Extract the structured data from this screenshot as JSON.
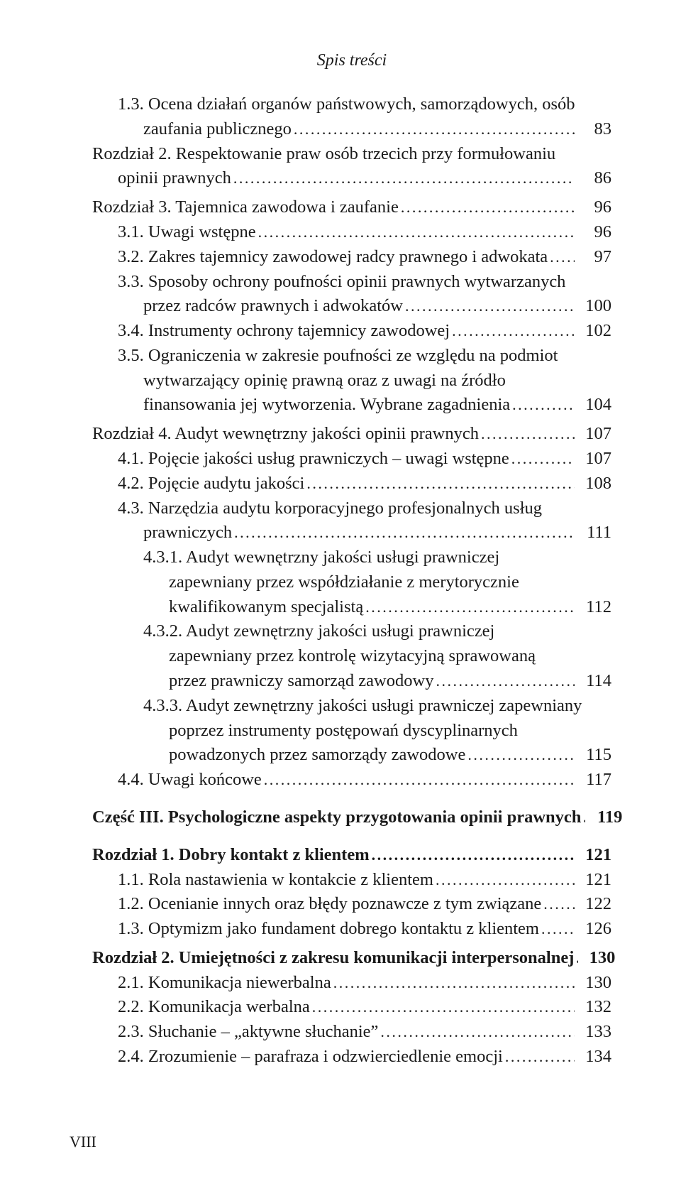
{
  "header": "Spis treści",
  "pageNumber": "VIII",
  "dots": ".........................................................................................................................................................................................",
  "lines": [
    {
      "t": "1.3. Ocena działań organów państwowych, samorządowych, osób",
      "p": "",
      "cls": "indent-1",
      "leader": false
    },
    {
      "t": "zaufania publicznego",
      "p": "83",
      "cls": "indent-2",
      "leader": true
    },
    {
      "t": "Rozdział 2. Respektowanie praw osób trzecich przy formułowaniu",
      "p": "",
      "cls": "",
      "leader": false
    },
    {
      "t": "opinii prawnych",
      "p": "86",
      "cls": "indent-1",
      "leader": true
    },
    {
      "t": "Rozdział 3. Tajemnica zawodowa i zaufanie",
      "p": "96",
      "cls": "gap-top-sm",
      "leader": true
    },
    {
      "t": "3.1. Uwagi wstępne",
      "p": "96",
      "cls": "indent-1",
      "leader": true
    },
    {
      "t": "3.2. Zakres tajemnicy zawodowej radcy prawnego i adwokata",
      "p": "97",
      "cls": "indent-1",
      "leader": true
    },
    {
      "t": "3.3. Sposoby ochrony poufności opinii prawnych wytwarzanych",
      "p": "",
      "cls": "indent-1",
      "leader": false
    },
    {
      "t": "przez radców prawnych i adwokatów",
      "p": "100",
      "cls": "indent-2",
      "leader": true
    },
    {
      "t": "3.4. Instrumenty ochrony tajemnicy zawodowej",
      "p": "102",
      "cls": "indent-1",
      "leader": true
    },
    {
      "t": "3.5. Ograniczenia w zakresie poufności ze względu na podmiot",
      "p": "",
      "cls": "indent-1",
      "leader": false
    },
    {
      "t": "wytwarzający opinię prawną oraz z uwagi na źródło",
      "p": "",
      "cls": "indent-2",
      "leader": false
    },
    {
      "t": "finansowania jej wytworzenia. Wybrane zagadnienia",
      "p": "104",
      "cls": "indent-2",
      "leader": true
    },
    {
      "t": "Rozdział 4. Audyt wewnętrzny jakości opinii prawnych",
      "p": "107",
      "cls": "gap-top-sm",
      "leader": true
    },
    {
      "t": "4.1. Pojęcie jakości usług prawniczych – uwagi wstępne",
      "p": "107",
      "cls": "indent-1",
      "leader": true
    },
    {
      "t": "4.2. Pojęcie audytu jakości",
      "p": "108",
      "cls": "indent-1",
      "leader": true
    },
    {
      "t": "4.3. Narzędzia audytu korporacyjnego profesjonalnych usług",
      "p": "",
      "cls": "indent-1",
      "leader": false
    },
    {
      "t": "prawniczych",
      "p": "111",
      "cls": "indent-2",
      "leader": true
    },
    {
      "t": "4.3.1. Audyt wewnętrzny jakości usługi prawniczej",
      "p": "",
      "cls": "indent-2",
      "leader": false
    },
    {
      "t": "zapewniany przez współdziałanie z merytorycznie",
      "p": "",
      "cls": "indent-3",
      "leader": false
    },
    {
      "t": "kwalifikowanym specjalistą",
      "p": "112",
      "cls": "indent-3",
      "leader": true
    },
    {
      "t": "4.3.2. Audyt zewnętrzny jakości usługi prawniczej",
      "p": "",
      "cls": "indent-2",
      "leader": false
    },
    {
      "t": "zapewniany przez kontrolę wizytacyjną sprawowaną",
      "p": "",
      "cls": "indent-3",
      "leader": false
    },
    {
      "t": "przez prawniczy samorząd zawodowy",
      "p": "114",
      "cls": "indent-3",
      "leader": true
    },
    {
      "t": "4.3.3. Audyt zewnętrzny jakości usługi prawniczej zapewniany",
      "p": "",
      "cls": "indent-2",
      "leader": false
    },
    {
      "t": "poprzez instrumenty postępowań dyscyplinarnych",
      "p": "",
      "cls": "indent-3",
      "leader": false
    },
    {
      "t": "powadzonych przez samorządy zawodowe",
      "p": "115",
      "cls": "indent-3",
      "leader": true
    },
    {
      "t": "4.4. Uwagi końcowe",
      "p": "117",
      "cls": "indent-1",
      "leader": true
    },
    {
      "t": "Część III. Psychologiczne aspekty przygotowania opinii prawnych",
      "p": "119",
      "cls": "bold gap-top-md",
      "leader": true
    },
    {
      "t": "Rozdział 1. Dobry kontakt z klientem",
      "p": "121",
      "cls": "bold gap-top-md",
      "leader": true
    },
    {
      "t": "1.1. Rola nastawienia w kontakcie z klientem",
      "p": "121",
      "cls": "indent-1",
      "leader": true
    },
    {
      "t": "1.2. Ocenianie innych oraz błędy poznawcze z tym związane",
      "p": "122",
      "cls": "indent-1",
      "leader": true
    },
    {
      "t": "1.3. Optymizm jako fundament dobrego kontaktu z klientem",
      "p": "126",
      "cls": "indent-1",
      "leader": true
    },
    {
      "t": "Rozdział 2. Umiejętności z zakresu komunikacji interpersonalnej",
      "p": "130",
      "cls": "bold gap-top-sm",
      "leader": true
    },
    {
      "t": "2.1. Komunikacja niewerbalna",
      "p": "130",
      "cls": "indent-1",
      "leader": true
    },
    {
      "t": "2.2. Komunikacja werbalna",
      "p": "132",
      "cls": "indent-1",
      "leader": true
    },
    {
      "t": "2.3. Słuchanie – „aktywne słuchanie”",
      "p": "133",
      "cls": "indent-1",
      "leader": true
    },
    {
      "t": "2.4. Zrozumienie – parafraza i odzwierciedlenie emocji",
      "p": "134",
      "cls": "indent-1",
      "leader": true
    }
  ]
}
